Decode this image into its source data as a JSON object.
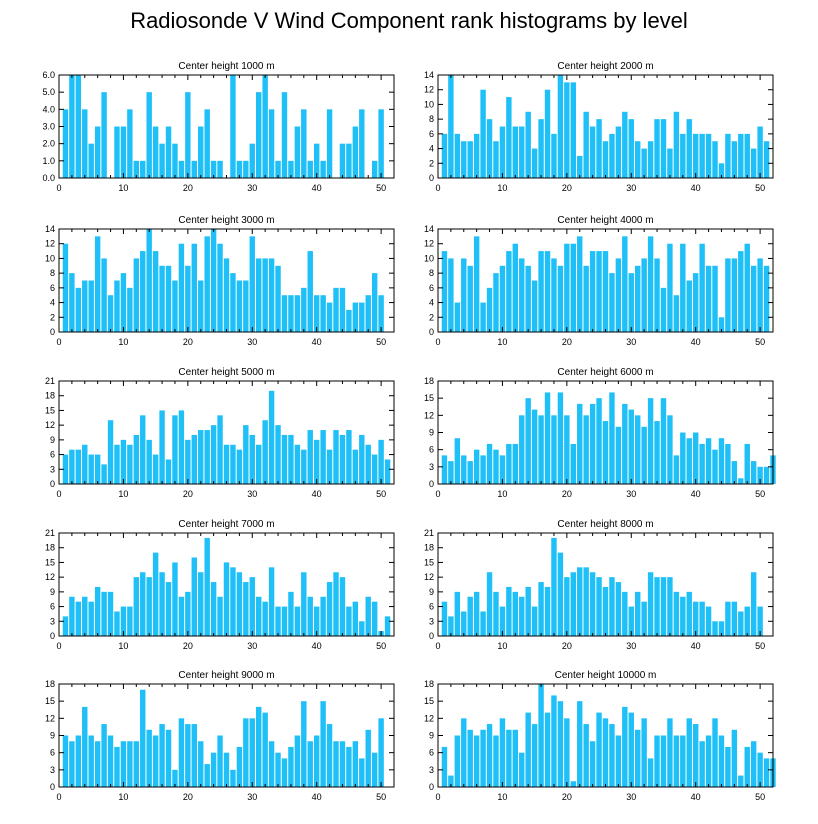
{
  "title": "Radiosonde V Wind Component rank histograms by level",
  "colors": {
    "bar": "#1ec0f7",
    "axis": "#000000"
  },
  "chart_data": [
    {
      "type": "bar",
      "title": "Center height 1000 m",
      "x_start": 1,
      "xlim": [
        0,
        52
      ],
      "xticks": [
        0,
        10,
        20,
        30,
        40,
        50
      ],
      "ylim": [
        0,
        6
      ],
      "yticks": [
        "0.0",
        "1.0",
        "2.0",
        "3.0",
        "4.0",
        "5.0",
        "6.0"
      ],
      "values": [
        4,
        6,
        6,
        4,
        2,
        3,
        5,
        0,
        3,
        3,
        4,
        1,
        1,
        5,
        3,
        2,
        3,
        2,
        1,
        5,
        1,
        3,
        4,
        1,
        1,
        0,
        6,
        1,
        1,
        2,
        5,
        6,
        4,
        1,
        5,
        1,
        3,
        4,
        1,
        2,
        1,
        4,
        0,
        2,
        2,
        3,
        4,
        0,
        1,
        4
      ]
    },
    {
      "type": "bar",
      "title": "Center height 2000 m",
      "x_start": 1,
      "xlim": [
        0,
        52
      ],
      "xticks": [
        0,
        10,
        20,
        30,
        40,
        50
      ],
      "ylim": [
        0,
        14
      ],
      "yticks": [
        "0",
        "2",
        "4",
        "6",
        "8",
        "10",
        "12",
        "14"
      ],
      "values": [
        6,
        14,
        6,
        5,
        5,
        6,
        12,
        8,
        5,
        7,
        11,
        7,
        7,
        9,
        4,
        8,
        12,
        6,
        14,
        13,
        13,
        3,
        9,
        7,
        8,
        5,
        6,
        7,
        9,
        8,
        5,
        4,
        5,
        8,
        8,
        4,
        9,
        6,
        8,
        6,
        6,
        6,
        5,
        2,
        6,
        5,
        6,
        6,
        4,
        7,
        5
      ]
    },
    {
      "type": "bar",
      "title": "Center height 3000 m",
      "x_start": 1,
      "xlim": [
        0,
        52
      ],
      "xticks": [
        0,
        10,
        20,
        30,
        40,
        50
      ],
      "ylim": [
        0,
        14
      ],
      "yticks": [
        "0",
        "2",
        "4",
        "6",
        "8",
        "10",
        "12",
        "14"
      ],
      "values": [
        12,
        8,
        6,
        7,
        7,
        13,
        10,
        5,
        7,
        8,
        6,
        10,
        11,
        14,
        11,
        9,
        9,
        7,
        12,
        9,
        12,
        7,
        13,
        14,
        12,
        10,
        8,
        7,
        7,
        13,
        10,
        10,
        10,
        9,
        5,
        5,
        5,
        6,
        11,
        5,
        5,
        4,
        6,
        6,
        3,
        4,
        4,
        5,
        8,
        5
      ]
    },
    {
      "type": "bar",
      "title": "Center height 4000 m",
      "x_start": 1,
      "xlim": [
        0,
        52
      ],
      "xticks": [
        0,
        10,
        20,
        30,
        40,
        50
      ],
      "ylim": [
        0,
        14
      ],
      "yticks": [
        "0",
        "2",
        "4",
        "6",
        "8",
        "10",
        "12",
        "14"
      ],
      "values": [
        11,
        10,
        4,
        10,
        9,
        13,
        4,
        6,
        8,
        9,
        11,
        12,
        10,
        9,
        7,
        11,
        11,
        10,
        9,
        12,
        12,
        13,
        9,
        11,
        11,
        11,
        8,
        10,
        13,
        8,
        9,
        10,
        13,
        10,
        6,
        12,
        5,
        12,
        7,
        8,
        12,
        9,
        9,
        2,
        10,
        10,
        11,
        12,
        9,
        10,
        9
      ]
    },
    {
      "type": "bar",
      "title": "Center height 5000 m",
      "x_start": 1,
      "xlim": [
        0,
        52
      ],
      "xticks": [
        0,
        10,
        20,
        30,
        40,
        50
      ],
      "ylim": [
        0,
        21
      ],
      "yticks": [
        "0",
        "3",
        "6",
        "9",
        "12",
        "15",
        "18",
        "21"
      ],
      "values": [
        6,
        7,
        7,
        8,
        6,
        6,
        4,
        13,
        8,
        9,
        8,
        10,
        14,
        9,
        6,
        15,
        5,
        14,
        15,
        9,
        10,
        11,
        11,
        12,
        14,
        8,
        8,
        7,
        12,
        10,
        8,
        13,
        19,
        12,
        10,
        10,
        8,
        7,
        11,
        9,
        11,
        7,
        11,
        10,
        11,
        7,
        10,
        8,
        6,
        9,
        5
      ]
    },
    {
      "type": "bar",
      "title": "Center height 6000 m",
      "x_start": 1,
      "xlim": [
        0,
        52
      ],
      "xticks": [
        0,
        10,
        20,
        30,
        40,
        50
      ],
      "ylim": [
        0,
        18
      ],
      "yticks": [
        "0",
        "3",
        "6",
        "9",
        "12",
        "15",
        "18"
      ],
      "values": [
        5,
        4,
        8,
        5,
        4,
        6,
        5,
        7,
        6,
        5,
        7,
        7,
        12,
        15,
        13,
        12,
        16,
        12,
        16,
        12,
        7,
        14,
        12,
        14,
        15,
        11,
        16,
        10,
        14,
        13,
        12,
        10,
        15,
        11,
        15,
        12,
        5,
        9,
        8,
        9,
        7,
        8,
        6,
        8,
        7,
        4,
        1,
        7,
        4,
        3,
        3,
        5
      ]
    },
    {
      "type": "bar",
      "title": "Center height 7000 m",
      "x_start": 1,
      "xlim": [
        0,
        52
      ],
      "xticks": [
        0,
        10,
        20,
        30,
        40,
        50
      ],
      "ylim": [
        0,
        21
      ],
      "yticks": [
        "0",
        "3",
        "6",
        "9",
        "12",
        "15",
        "18",
        "21"
      ],
      "values": [
        4,
        8,
        7,
        8,
        7,
        10,
        9,
        9,
        5,
        6,
        6,
        12,
        13,
        12,
        17,
        13,
        11,
        15,
        8,
        9,
        16,
        13,
        20,
        11,
        8,
        15,
        14,
        13,
        11,
        12,
        8,
        7,
        14,
        6,
        6,
        9,
        6,
        13,
        8,
        6,
        8,
        11,
        13,
        12,
        6,
        7,
        3,
        8,
        7,
        1,
        4
      ]
    },
    {
      "type": "bar",
      "title": "Center height 8000 m",
      "x_start": 1,
      "xlim": [
        0,
        52
      ],
      "xticks": [
        0,
        10,
        20,
        30,
        40,
        50
      ],
      "ylim": [
        0,
        21
      ],
      "yticks": [
        "0",
        "3",
        "6",
        "9",
        "12",
        "15",
        "18",
        "21"
      ],
      "values": [
        7,
        4,
        9,
        5,
        8,
        9,
        5,
        13,
        9,
        6,
        10,
        9,
        8,
        10,
        6,
        11,
        10,
        20,
        17,
        12,
        13,
        14,
        14,
        13,
        12,
        10,
        12,
        11,
        9,
        6,
        9,
        7,
        13,
        12,
        12,
        12,
        9,
        8,
        9,
        7,
        7,
        6,
        3,
        3,
        7,
        7,
        5,
        6,
        13,
        6
      ]
    },
    {
      "type": "bar",
      "title": "Center height 9000 m",
      "x_start": 1,
      "xlim": [
        0,
        52
      ],
      "xticks": [
        0,
        10,
        20,
        30,
        40,
        50
      ],
      "ylim": [
        0,
        18
      ],
      "yticks": [
        "0",
        "3",
        "6",
        "9",
        "12",
        "15",
        "18"
      ],
      "values": [
        9,
        8,
        9,
        14,
        9,
        8,
        11,
        9,
        7,
        8,
        8,
        8,
        17,
        10,
        9,
        11,
        10,
        3,
        12,
        11,
        11,
        8,
        4,
        6,
        9,
        6,
        3,
        7,
        12,
        12,
        14,
        13,
        8,
        6,
        5,
        7,
        9,
        15,
        8,
        9,
        15,
        11,
        8,
        8,
        7,
        8,
        5,
        10,
        6,
        12
      ]
    },
    {
      "type": "bar",
      "title": "Center height 10000 m",
      "x_start": 1,
      "xlim": [
        0,
        52
      ],
      "xticks": [
        0,
        10,
        20,
        30,
        40,
        50
      ],
      "ylim": [
        0,
        18
      ],
      "yticks": [
        "0",
        "3",
        "6",
        "9",
        "12",
        "15",
        "18"
      ],
      "values": [
        7,
        2,
        9,
        12,
        10,
        9,
        10,
        11,
        9,
        12,
        10,
        10,
        6,
        13,
        11,
        18,
        13,
        16,
        15,
        12,
        1,
        15,
        11,
        8,
        13,
        12,
        11,
        9,
        14,
        13,
        10,
        12,
        5,
        9,
        9,
        12,
        9,
        9,
        12,
        11,
        8,
        9,
        12,
        9,
        7,
        10,
        2,
        7,
        8,
        6,
        5,
        5
      ]
    }
  ]
}
